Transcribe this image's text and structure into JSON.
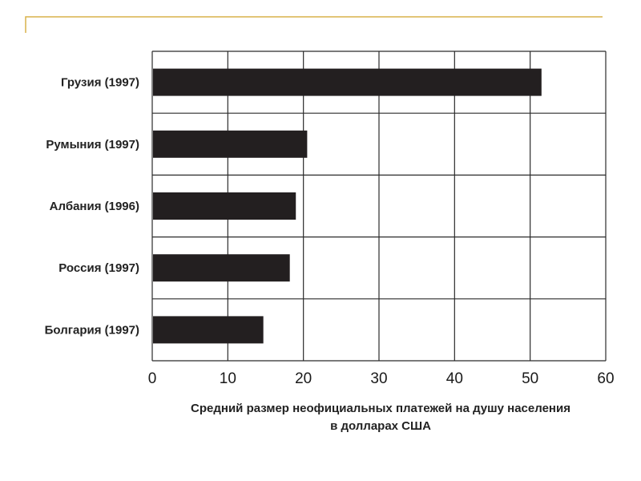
{
  "colors": {
    "accent_rule": "#d9b24a",
    "bar": "#231f20",
    "grid": "#2b2b2b"
  },
  "chart_data": {
    "type": "bar",
    "orientation": "horizontal",
    "title": "",
    "categories": [
      "Грузия (1997)",
      "Румыния (1997)",
      "Албания (1996)",
      "Россия (1997)",
      "Болгария (1997)"
    ],
    "values": [
      51.5,
      20.5,
      19,
      18.2,
      14.7
    ],
    "xticks": [
      0,
      10,
      20,
      30,
      40,
      50,
      60
    ],
    "xlim": [
      0,
      60
    ],
    "xlabel_line1": "Средний размер неофициальных платежей на душу населения",
    "xlabel_line2": "в долларах США",
    "ylabel": "",
    "grid": true,
    "legend": "none"
  }
}
